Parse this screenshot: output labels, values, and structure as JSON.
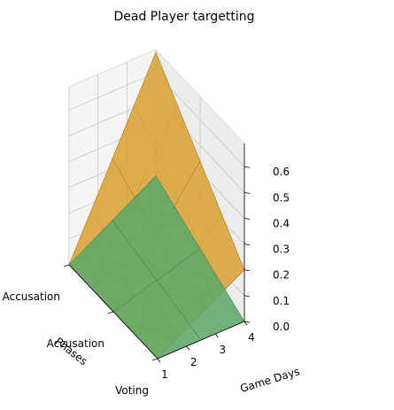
{
  "chart_data": {
    "type": "surface3d",
    "title": "Dead Player targetting",
    "xlabel": "Game Days",
    "ylabel": "Phases",
    "zlabel": "",
    "x_ticks": [
      "1",
      "2",
      "3",
      "4"
    ],
    "y_ticks": [
      "Accusation",
      "Accusation",
      "Voting"
    ],
    "z_ticks": [
      "0.0",
      "0.1",
      "0.2",
      "0.3",
      "0.4",
      "0.5",
      "0.6"
    ],
    "xlim": [
      1,
      4
    ],
    "ylim": [
      0,
      2
    ],
    "zlim": [
      0,
      0.69
    ],
    "grid": true,
    "series": [
      {
        "color": "#daa236",
        "x": [
          1,
          4
        ],
        "y": [
          0,
          2
        ],
        "z": [
          [
            0.0,
            0.0
          ],
          [
            0.68,
            0.2
          ]
        ]
      },
      {
        "color": "#5fa86a",
        "x": [
          1,
          4
        ],
        "y": [
          0,
          2
        ],
        "z": [
          [
            0.0,
            0.0
          ],
          [
            0.2,
            0.0
          ]
        ]
      }
    ]
  }
}
